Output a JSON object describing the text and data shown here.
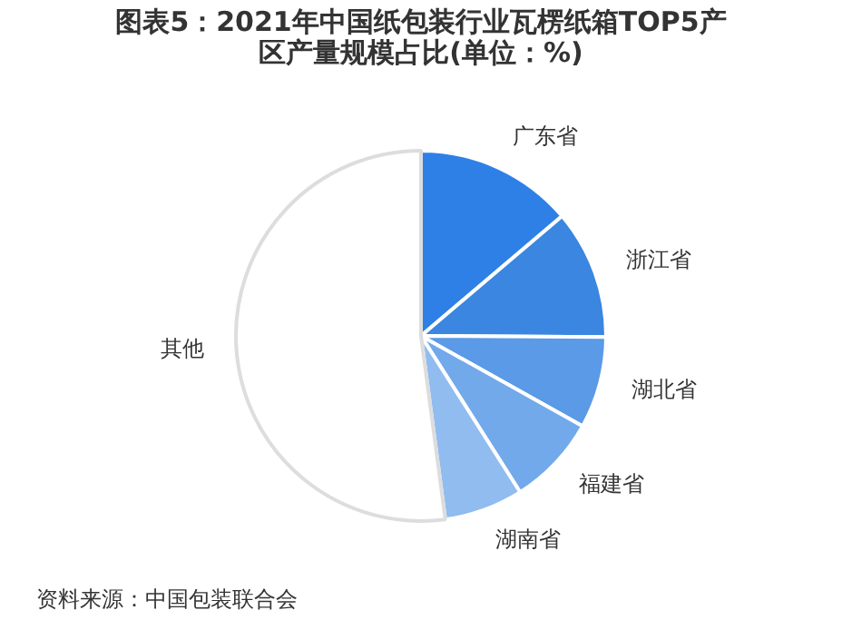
{
  "chart_data": {
    "type": "pie",
    "title": "图表5：2021年中国纸包装行业瓦楞纸箱TOP5产区产量规模占比(单位：%)",
    "categories": [
      "广东省",
      "浙江省",
      "湖北省",
      "福建省",
      "湖南省",
      "其他"
    ],
    "values": [
      13.8,
      11.3,
      8.0,
      7.9,
      6.9,
      52.1
    ],
    "colors": [
      "#2f80e6",
      "#3a86e0",
      "#5a9ae6",
      "#72a9ea",
      "#90bcef",
      "#ffffff"
    ],
    "annotations": [
      "资料来源：中国包装联合会"
    ],
    "legend": false
  }
}
